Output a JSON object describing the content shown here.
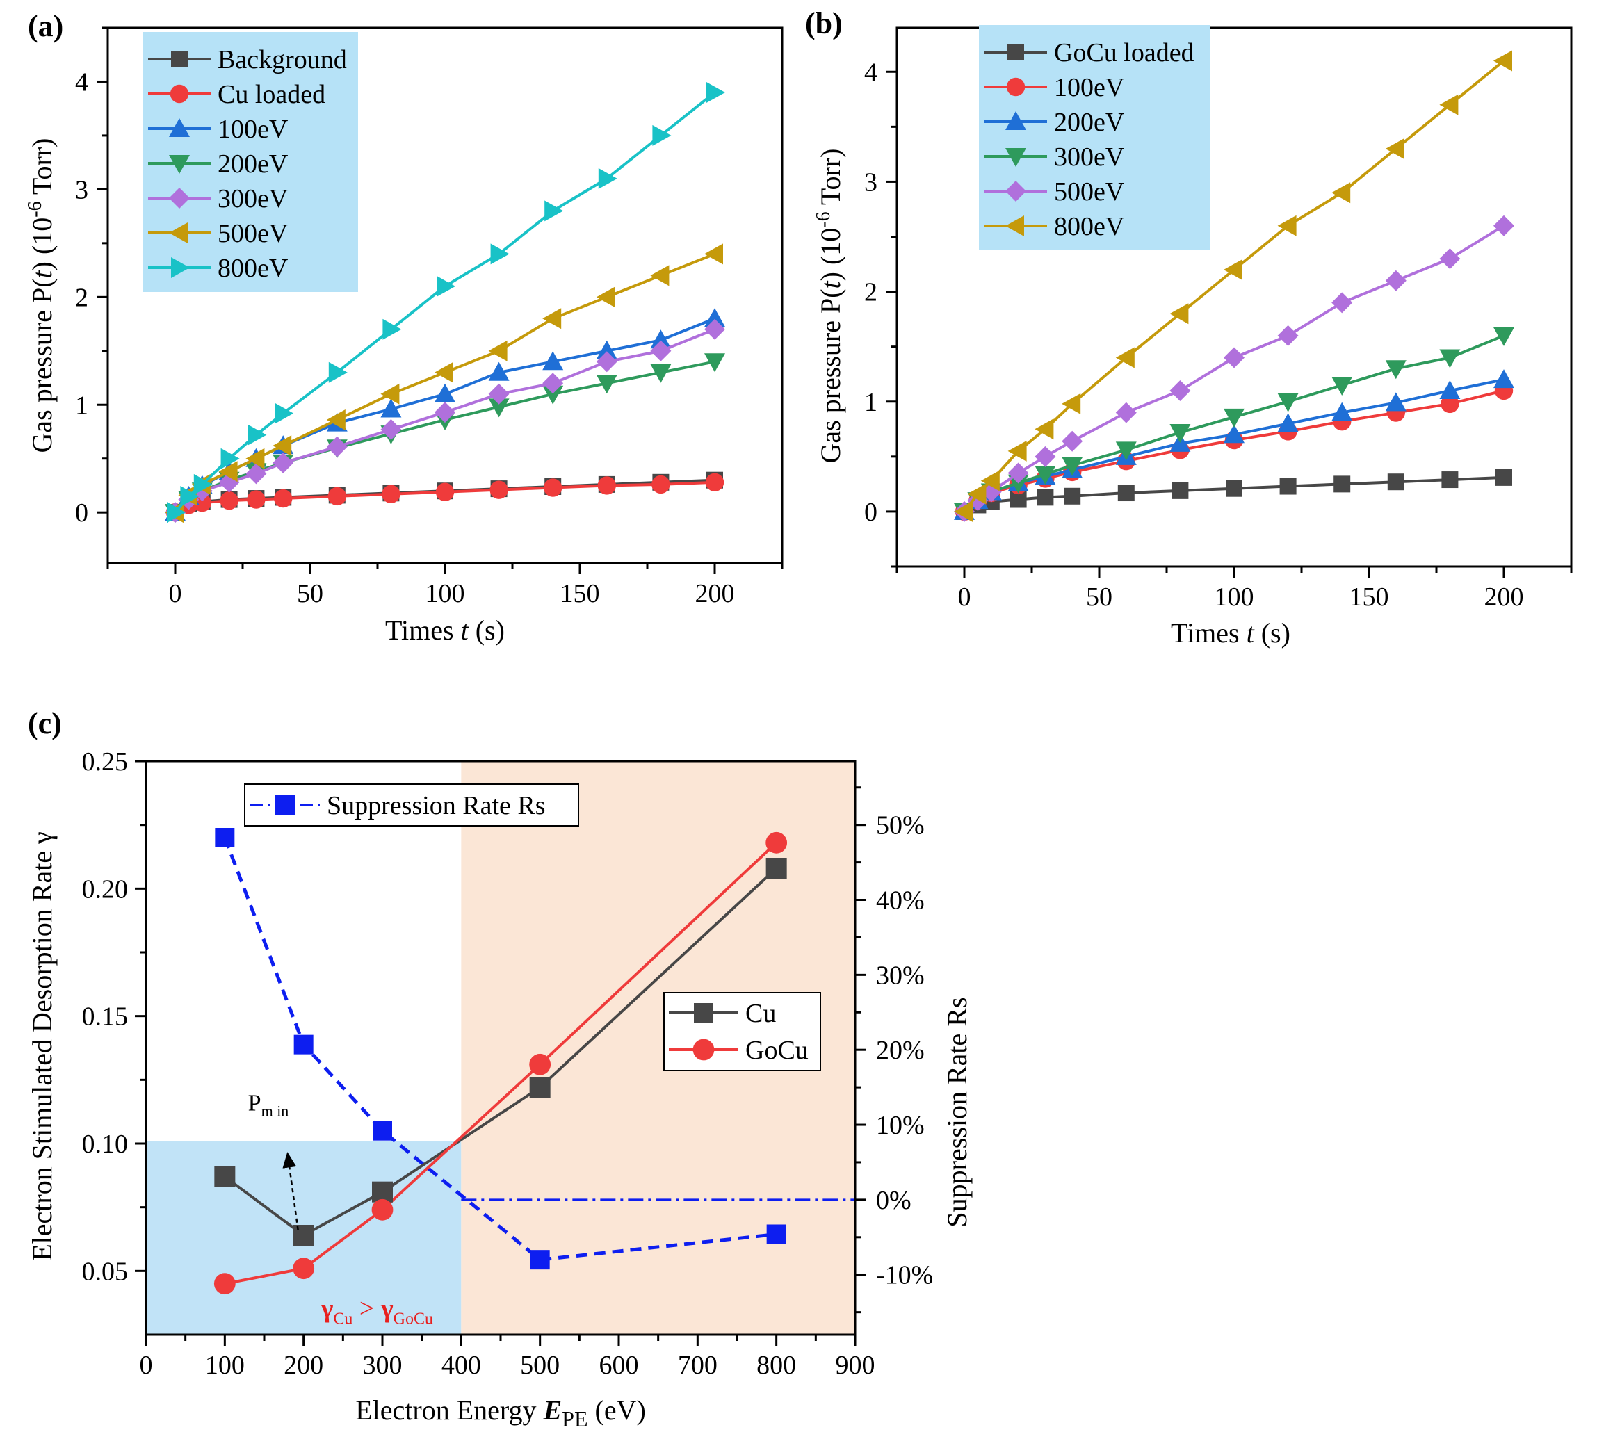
{
  "colors": {
    "background_series": "#474747",
    "cu_loaded": "#ef3b3b",
    "e100": "#1f6fd6",
    "e200": "#2e9a5c",
    "e300": "#b070dc",
    "e500": "#c59a0b",
    "e800": "#19c2c7",
    "legend_bg": "#b6e2f7",
    "region_blue": "#c1e3f7",
    "region_orange": "#fbe6d6",
    "rs_blue": "#0d1ef0",
    "annotation_red": "#e8201f"
  },
  "chart_data": [
    {
      "id": "a",
      "type": "line",
      "panel_label": "(a)",
      "xlabel_main": "Times ",
      "xlabel_var": "t",
      "xlabel_unit": " (s)",
      "ylabel_pre": "Gas pressure P(",
      "ylabel_var": "t",
      "ylabel_mid": ") (10",
      "ylabel_sup": "-6",
      "ylabel_post": " Torr)",
      "xlim": [
        -25,
        225
      ],
      "ylim": [
        -0.47,
        4.5
      ],
      "xticks": [
        "0",
        "50",
        "100",
        "150",
        "200"
      ],
      "xtick_values": [
        0,
        50,
        100,
        150,
        200
      ],
      "yticks": [
        "0",
        "1",
        "2",
        "3",
        "4"
      ],
      "ytick_values": [
        0,
        1,
        2,
        3,
        4
      ],
      "x": [
        0,
        5,
        10,
        20,
        30,
        40,
        60,
        80,
        100,
        120,
        140,
        160,
        180,
        200
      ],
      "series": [
        {
          "name": "Background",
          "color": "#474747",
          "marker": "square",
          "values": [
            0,
            0.08,
            0.1,
            0.12,
            0.13,
            0.14,
            0.16,
            0.18,
            0.2,
            0.22,
            0.24,
            0.26,
            0.28,
            0.3
          ]
        },
        {
          "name": "Cu loaded",
          "color": "#ef3b3b",
          "marker": "circle",
          "values": [
            0,
            0.07,
            0.09,
            0.11,
            0.12,
            0.13,
            0.15,
            0.17,
            0.19,
            0.21,
            0.23,
            0.25,
            0.26,
            0.28
          ]
        },
        {
          "name": "100eV",
          "color": "#1f6fd6",
          "marker": "tri-up",
          "values": [
            0,
            0.15,
            0.25,
            0.38,
            0.5,
            0.62,
            0.83,
            0.96,
            1.1,
            1.3,
            1.4,
            1.5,
            1.6,
            1.8
          ]
        },
        {
          "name": "200eV",
          "color": "#2e9a5c",
          "marker": "tri-down",
          "values": [
            0,
            0.12,
            0.2,
            0.3,
            0.38,
            0.46,
            0.6,
            0.73,
            0.86,
            0.98,
            1.1,
            1.2,
            1.3,
            1.4
          ]
        },
        {
          "name": "300eV",
          "color": "#b070dc",
          "marker": "diamond",
          "values": [
            0,
            0.12,
            0.2,
            0.28,
            0.36,
            0.46,
            0.61,
            0.77,
            0.93,
            1.1,
            1.2,
            1.4,
            1.5,
            1.7
          ]
        },
        {
          "name": "500eV",
          "color": "#c59a0b",
          "marker": "tri-left",
          "values": [
            0,
            0.16,
            0.26,
            0.38,
            0.5,
            0.62,
            0.86,
            1.1,
            1.3,
            1.5,
            1.8,
            2.0,
            2.2,
            2.4
          ]
        },
        {
          "name": "800eV",
          "color": "#19c2c7",
          "marker": "tri-right",
          "values": [
            0,
            0.15,
            0.26,
            0.5,
            0.72,
            0.92,
            1.3,
            1.7,
            2.1,
            2.4,
            2.8,
            3.1,
            3.5,
            3.9
          ]
        }
      ],
      "legend": "top-left"
    },
    {
      "id": "b",
      "type": "line",
      "panel_label": "(b)",
      "xlabel_main": "Times ",
      "xlabel_var": "t",
      "xlabel_unit": " (s)",
      "ylabel_pre": "Gas pressure P(",
      "ylabel_var": "t",
      "ylabel_mid": ") (10",
      "ylabel_sup": "-6",
      "ylabel_post": " Torr)",
      "xlim": [
        -25,
        225
      ],
      "ylim": [
        -0.5,
        4.4
      ],
      "xticks": [
        "0",
        "50",
        "100",
        "150",
        "200"
      ],
      "xtick_values": [
        0,
        50,
        100,
        150,
        200
      ],
      "yticks": [
        "0",
        "1",
        "2",
        "3",
        "4"
      ],
      "ytick_values": [
        0,
        1,
        2,
        3,
        4
      ],
      "x": [
        0,
        5,
        10,
        20,
        30,
        40,
        60,
        80,
        100,
        120,
        140,
        160,
        180,
        200
      ],
      "series": [
        {
          "name": "GoCu loaded",
          "color": "#474747",
          "marker": "square",
          "values": [
            0,
            0.06,
            0.09,
            0.11,
            0.13,
            0.14,
            0.17,
            0.19,
            0.21,
            0.23,
            0.25,
            0.27,
            0.29,
            0.31
          ]
        },
        {
          "name": "100eV",
          "color": "#ef3b3b",
          "marker": "circle",
          "values": [
            0,
            0.1,
            0.17,
            0.24,
            0.3,
            0.36,
            0.46,
            0.56,
            0.65,
            0.73,
            0.82,
            0.9,
            0.98,
            1.1
          ]
        },
        {
          "name": "200eV",
          "color": "#1f6fd6",
          "marker": "tri-up",
          "values": [
            0,
            0.1,
            0.18,
            0.26,
            0.32,
            0.38,
            0.5,
            0.62,
            0.7,
            0.8,
            0.9,
            0.99,
            1.1,
            1.2
          ]
        },
        {
          "name": "300eV",
          "color": "#2e9a5c",
          "marker": "tri-down",
          "values": [
            0,
            0.1,
            0.18,
            0.26,
            0.34,
            0.42,
            0.56,
            0.72,
            0.86,
            1.0,
            1.15,
            1.3,
            1.4,
            1.6
          ]
        },
        {
          "name": "500eV",
          "color": "#b070dc",
          "marker": "diamond",
          "values": [
            0,
            0.1,
            0.18,
            0.35,
            0.5,
            0.64,
            0.9,
            1.1,
            1.4,
            1.6,
            1.9,
            2.1,
            2.3,
            2.6
          ]
        },
        {
          "name": "800eV",
          "color": "#c59a0b",
          "marker": "tri-left",
          "values": [
            0,
            0.16,
            0.28,
            0.55,
            0.75,
            0.98,
            1.4,
            1.8,
            2.2,
            2.6,
            2.9,
            3.3,
            3.7,
            4.1
          ]
        }
      ],
      "legend": "top-left"
    },
    {
      "id": "c",
      "type": "line",
      "panel_label": "(c)",
      "xlabel_main": "Electron Energy ",
      "xlabel_var": "E",
      "xlabel_sub": "PE",
      "xlabel_unit": " (eV)",
      "ylabel": "Electron Stimulated Desorption Rate γ",
      "ylabel_right": "Suppression Rate Rs",
      "xlim": [
        0,
        900
      ],
      "ylim": [
        0.025,
        0.25
      ],
      "ylim_right": [
        -0.18,
        0.585
      ],
      "xticks": [
        "0",
        "100",
        "200",
        "300",
        "400",
        "500",
        "600",
        "700",
        "800",
        "900"
      ],
      "xtick_values": [
        0,
        100,
        200,
        300,
        400,
        500,
        600,
        700,
        800,
        900
      ],
      "yticks": [
        "0.05",
        "0.10",
        "0.15",
        "0.20",
        "0.25"
      ],
      "ytick_values": [
        0.05,
        0.1,
        0.15,
        0.2,
        0.25
      ],
      "yticks_right": [
        "-10%",
        "0%",
        "10%",
        "20%",
        "30%",
        "40%",
        "50%"
      ],
      "ytick_right_values": [
        -0.1,
        0,
        0.1,
        0.2,
        0.3,
        0.4,
        0.5
      ],
      "x": [
        100,
        200,
        300,
        500,
        800
      ],
      "series": [
        {
          "name": "Cu",
          "color": "#474747",
          "marker": "square",
          "axis": "left",
          "values": [
            0.087,
            0.064,
            0.081,
            0.122,
            0.208
          ]
        },
        {
          "name": "GoCu",
          "color": "#ef3b3b",
          "marker": "circle",
          "axis": "left",
          "values": [
            0.045,
            0.051,
            0.074,
            0.131,
            0.218
          ]
        },
        {
          "name": "Suppression Rate Rs",
          "color": "#0d1ef0",
          "marker": "square",
          "axis": "right",
          "values": [
            0.483,
            0.207,
            0.092,
            -0.08,
            -0.046
          ]
        }
      ],
      "crossover_x": 400,
      "crossover_y": 0.101,
      "zero_line_from_x": 400,
      "annotation_pmin": {
        "text": "P",
        "sub": "m in",
        "x": 200
      },
      "annotation_gamma": {
        "lhs": "γ",
        "lhs_sub": "Cu",
        "op": " > ",
        "rhs": "γ",
        "rhs_sub": "GoCu"
      },
      "legend": "center-right"
    }
  ]
}
